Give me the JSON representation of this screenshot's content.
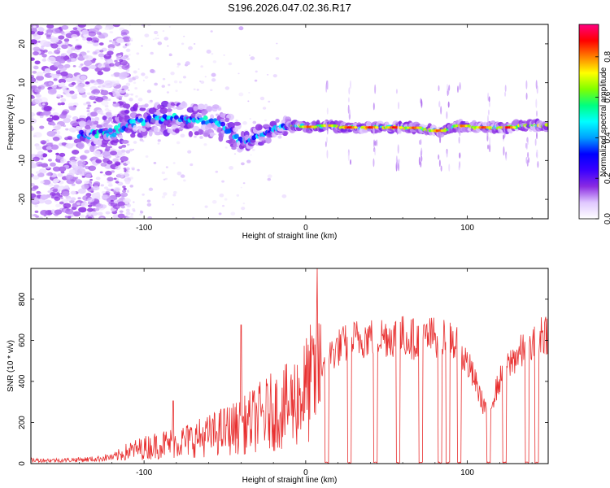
{
  "title": "S196.2026.047.02.36.R17",
  "chart_data": [
    {
      "type": "heatmap",
      "name": "spectrogram",
      "xlabel": "Height of straight line (km)",
      "ylabel": "Frequency (Hz)",
      "xlim": [
        -170,
        150
      ],
      "ylim": [
        -25,
        25
      ],
      "xticks": [
        -100,
        0,
        100
      ],
      "yticks": [
        -20,
        -10,
        0,
        10,
        20
      ],
      "colorbar": {
        "label": "Normalized spectral amplitude",
        "range": [
          0,
          0.96
        ],
        "ticks": [
          "0.0",
          "0.2",
          "0.4",
          "0.6",
          "0.8"
        ],
        "tick_values": [
          0,
          0.2,
          0.4,
          0.6,
          0.8
        ],
        "colormap": [
          "#ffffff",
          "#e0c8ff",
          "#8a2be2",
          "#3a00ff",
          "#0000ff",
          "#00a0ff",
          "#00ffff",
          "#00ff80",
          "#80ff00",
          "#ffff00",
          "#ff8000",
          "#ff0000",
          "#ff0080"
        ]
      },
      "signal_track": {
        "description": "frequency (Hz) of main echo trace vs height (km)",
        "height": [
          -135,
          -120,
          -105,
          -95,
          -85,
          -75,
          -65,
          -55,
          -45,
          -40,
          -35,
          -25,
          -15,
          -5,
          5,
          15,
          25,
          35,
          45,
          55,
          65,
          75,
          85,
          95,
          105,
          115,
          125,
          135,
          145
        ],
        "frequency": [
          -3,
          -3,
          0,
          1,
          0.5,
          1,
          0,
          0,
          -3,
          -5,
          -5,
          -3,
          -1.5,
          -1,
          -1.5,
          -1,
          -1.5,
          -1.5,
          -1.5,
          -1.5,
          -1.5,
          -2,
          -2.5,
          -1,
          -1.5,
          -1.5,
          -1.5,
          -1,
          -1
        ]
      }
    },
    {
      "type": "line",
      "name": "snr",
      "xlabel": "Height of straight line (km)",
      "ylabel": "SNR (10 * v/v)",
      "xlim": [
        -170,
        150
      ],
      "ylim": [
        0,
        950
      ],
      "xticks": [
        -100,
        0,
        100
      ],
      "yticks": [
        0,
        200,
        400,
        600,
        800
      ],
      "color": "#e83030",
      "series": [
        {
          "name": "SNR envelope",
          "x": [
            -170,
            -150,
            -130,
            -120,
            -110,
            -100,
            -90,
            -80,
            -70,
            -60,
            -50,
            -40,
            -30,
            -20,
            -10,
            -5,
            0,
            5,
            10,
            15,
            20,
            30,
            40,
            50,
            60,
            70,
            80,
            90,
            100,
            105,
            110,
            115,
            120,
            125,
            130,
            135,
            140,
            145,
            150
          ],
          "y": [
            15,
            15,
            20,
            30,
            70,
            90,
            110,
            120,
            140,
            160,
            190,
            210,
            260,
            300,
            330,
            380,
            420,
            480,
            520,
            560,
            600,
            640,
            660,
            660,
            660,
            640,
            660,
            650,
            520,
            420,
            300,
            320,
            430,
            500,
            560,
            580,
            600,
            680,
            680
          ]
        }
      ],
      "spikes": {
        "x": [
          -82,
          -40,
          7
        ],
        "y": [
          305,
          675,
          950
        ]
      },
      "dropouts": {
        "description": "heights (km) where SNR drops to near zero",
        "x": [
          13,
          27,
          43,
          57,
          71,
          83,
          88,
          95,
          113,
          123,
          137,
          143
        ]
      }
    }
  ]
}
